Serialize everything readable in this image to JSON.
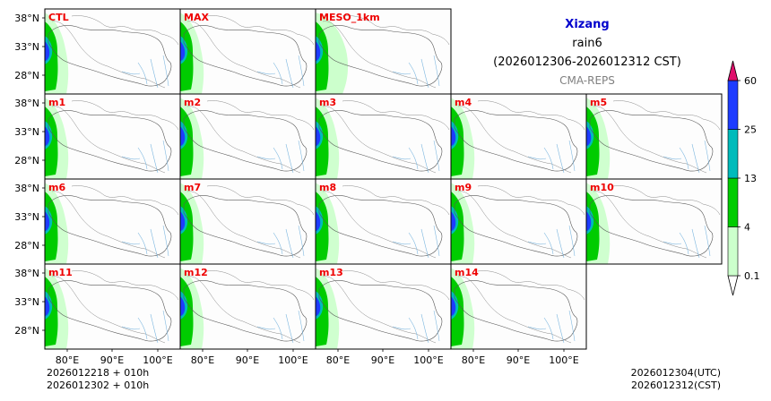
{
  "title": {
    "region": "Xizang",
    "variable": "rain6",
    "period": "(2026012306-2026012312 CST)",
    "model": "CMA-REPS"
  },
  "panels": [
    {
      "label": "CTL",
      "row": 0,
      "col": 0
    },
    {
      "label": "MAX",
      "row": 0,
      "col": 1
    },
    {
      "label": "MESO_1km",
      "row": 0,
      "col": 2
    },
    {
      "label": "m1",
      "row": 1,
      "col": 0
    },
    {
      "label": "m2",
      "row": 1,
      "col": 1
    },
    {
      "label": "m3",
      "row": 1,
      "col": 2
    },
    {
      "label": "m4",
      "row": 1,
      "col": 3
    },
    {
      "label": "m5",
      "row": 1,
      "col": 4
    },
    {
      "label": "m6",
      "row": 2,
      "col": 0
    },
    {
      "label": "m7",
      "row": 2,
      "col": 1
    },
    {
      "label": "m8",
      "row": 2,
      "col": 2
    },
    {
      "label": "m9",
      "row": 2,
      "col": 3
    },
    {
      "label": "m10",
      "row": 2,
      "col": 4
    },
    {
      "label": "m11",
      "row": 3,
      "col": 0
    },
    {
      "label": "m12",
      "row": 3,
      "col": 1
    },
    {
      "label": "m13",
      "row": 3,
      "col": 2
    },
    {
      "label": "m14",
      "row": 3,
      "col": 3
    }
  ],
  "lat_ticks": [
    "38°N",
    "33°N",
    "28°N"
  ],
  "lon_ticks": [
    "80°E",
    "90°E",
    "100°E"
  ],
  "colorbar": {
    "levels": [
      "0.1",
      "4",
      "13",
      "25",
      "60"
    ],
    "colors": [
      "#ccffcc",
      "#00cc00",
      "#00bbbb",
      "#1e3cff",
      "#e0106c"
    ]
  },
  "footer": {
    "left_line1": "2026012218  +  010h",
    "left_line2": "2026012302  +  010h",
    "right_line1": "2026012304(UTC)",
    "right_line2": "2026012312(CST)"
  },
  "label_color": "#ee0000"
}
